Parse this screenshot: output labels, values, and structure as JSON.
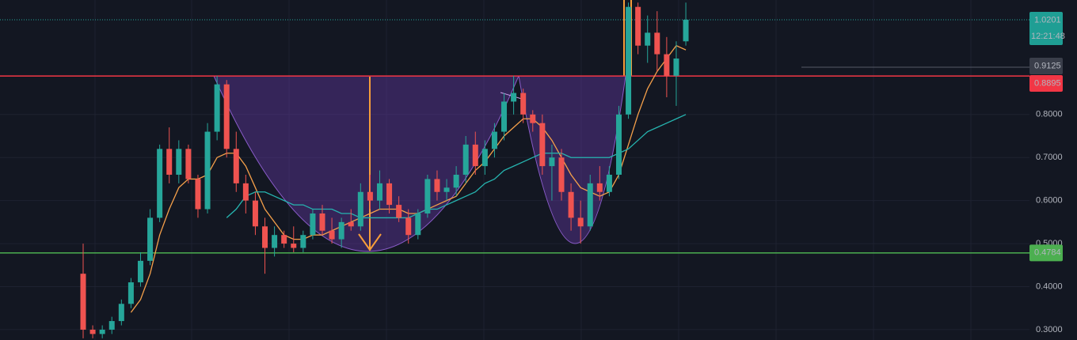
{
  "chart_data": {
    "type": "candlestick",
    "open": [
      0.43,
      0.3,
      0.29,
      0.3,
      0.32,
      0.36,
      0.41,
      0.46,
      0.56,
      0.72,
      0.66,
      0.72,
      0.65,
      0.58,
      0.76,
      0.87,
      0.72,
      0.64,
      0.6,
      0.54,
      0.49,
      0.52,
      0.5,
      0.49,
      0.52,
      0.57,
      0.53,
      0.51,
      0.55,
      0.54,
      0.62,
      0.6,
      0.64,
      0.59,
      0.56,
      0.52,
      0.57,
      0.65,
      0.62,
      0.63,
      0.66,
      0.73,
      0.68,
      0.72,
      0.76,
      0.83,
      0.85,
      0.8,
      0.78,
      0.68,
      0.7,
      0.62,
      0.56,
      0.54,
      0.64,
      0.62,
      0.66,
      0.8,
      1.05,
      0.96,
      0.99,
      0.94,
      0.89,
      0.97
    ],
    "high": [
      0.5,
      0.31,
      0.31,
      0.33,
      0.37,
      0.42,
      0.48,
      0.58,
      0.73,
      0.77,
      0.74,
      0.73,
      0.66,
      0.78,
      0.89,
      0.88,
      0.76,
      0.66,
      0.62,
      0.56,
      0.54,
      0.53,
      0.54,
      0.53,
      0.58,
      0.59,
      0.56,
      0.56,
      0.58,
      0.64,
      0.66,
      0.67,
      0.65,
      0.61,
      0.58,
      0.58,
      0.66,
      0.67,
      0.65,
      0.68,
      0.75,
      0.76,
      0.74,
      0.78,
      0.85,
      0.89,
      0.86,
      0.81,
      0.8,
      0.73,
      0.72,
      0.64,
      0.6,
      0.66,
      0.68,
      0.68,
      0.82,
      1.06,
      1.06,
      1.03,
      1.04,
      0.98,
      0.97,
      1.06
    ],
    "low": [
      0.28,
      0.28,
      0.28,
      0.29,
      0.31,
      0.35,
      0.4,
      0.45,
      0.55,
      0.64,
      0.64,
      0.64,
      0.56,
      0.57,
      0.74,
      0.7,
      0.62,
      0.57,
      0.52,
      0.43,
      0.47,
      0.49,
      0.48,
      0.48,
      0.51,
      0.52,
      0.5,
      0.49,
      0.53,
      0.53,
      0.58,
      0.58,
      0.57,
      0.55,
      0.5,
      0.51,
      0.56,
      0.6,
      0.6,
      0.61,
      0.64,
      0.66,
      0.66,
      0.7,
      0.74,
      0.8,
      0.78,
      0.76,
      0.66,
      0.6,
      0.6,
      0.53,
      0.5,
      0.53,
      0.6,
      0.61,
      0.65,
      0.79,
      0.94,
      0.92,
      0.9,
      0.84,
      0.82,
      0.96
    ],
    "close": [
      0.3,
      0.29,
      0.3,
      0.32,
      0.36,
      0.41,
      0.46,
      0.56,
      0.72,
      0.66,
      0.72,
      0.65,
      0.58,
      0.76,
      0.87,
      0.72,
      0.64,
      0.6,
      0.54,
      0.49,
      0.52,
      0.5,
      0.49,
      0.52,
      0.57,
      0.53,
      0.51,
      0.55,
      0.54,
      0.62,
      0.6,
      0.64,
      0.59,
      0.56,
      0.52,
      0.57,
      0.65,
      0.62,
      0.63,
      0.66,
      0.73,
      0.68,
      0.72,
      0.76,
      0.83,
      0.85,
      0.8,
      0.78,
      0.68,
      0.7,
      0.62,
      0.56,
      0.54,
      0.64,
      0.62,
      0.66,
      0.8,
      1.05,
      0.96,
      0.99,
      0.94,
      0.89,
      0.93,
      1.0201
    ],
    "up_color": "#26a69a",
    "down_color": "#ef5350",
    "overlays": [
      {
        "color": "#f5a04a",
        "values": [
          null,
          null,
          null,
          null,
          null,
          0.34,
          0.37,
          0.43,
          0.52,
          0.58,
          0.63,
          0.65,
          0.65,
          0.66,
          0.7,
          0.71,
          0.71,
          0.68,
          0.63,
          0.58,
          0.55,
          0.52,
          0.51,
          0.51,
          0.52,
          0.52,
          0.53,
          0.54,
          0.55,
          0.56,
          0.57,
          0.58,
          0.58,
          0.58,
          0.57,
          0.57,
          0.58,
          0.59,
          0.6,
          0.61,
          0.64,
          0.67,
          0.69,
          0.72,
          0.75,
          0.77,
          0.79,
          0.79,
          0.77,
          0.74,
          0.7,
          0.66,
          0.63,
          0.62,
          0.61,
          0.62,
          0.66,
          0.73,
          0.8,
          0.86,
          0.9,
          0.93,
          0.96,
          0.95
        ]
      },
      {
        "color": "#26b5b0",
        "values": [
          null,
          null,
          null,
          null,
          null,
          null,
          null,
          null,
          null,
          null,
          null,
          null,
          null,
          null,
          null,
          0.56,
          0.58,
          0.61,
          0.62,
          0.62,
          0.61,
          0.6,
          0.59,
          0.59,
          0.58,
          0.58,
          0.58,
          0.57,
          0.57,
          0.56,
          0.56,
          0.56,
          0.56,
          0.56,
          0.56,
          0.57,
          0.58,
          0.58,
          0.59,
          0.6,
          0.61,
          0.62,
          0.64,
          0.65,
          0.67,
          0.68,
          0.69,
          0.7,
          0.71,
          0.71,
          0.71,
          0.7,
          0.7,
          0.7,
          0.7,
          0.7,
          0.71,
          0.72,
          0.74,
          0.76,
          0.77,
          0.78,
          0.79,
          0.8
        ]
      }
    ],
    "ylim": [
      0.276,
      1.066
    ],
    "yticks": [
      {
        "value": 0.3,
        "label": "0.3000"
      },
      {
        "value": 0.4,
        "label": "0.4000"
      },
      {
        "value": 0.5,
        "label": "0.5000"
      },
      {
        "value": 0.6,
        "label": "0.6000"
      },
      {
        "value": 0.7,
        "label": "0.7000"
      },
      {
        "value": 0.8,
        "label": "0.8000"
      }
    ],
    "hlines": [
      {
        "value": 0.8895,
        "color": "#f23645"
      },
      {
        "value": 0.4784,
        "color": "#4caf50"
      }
    ],
    "price_labels": [
      {
        "value": 1.0201,
        "label": "1.0201",
        "sub": "12:21:48",
        "color": "#1f9e94"
      },
      {
        "value": 0.9125,
        "label": "0.9125",
        "color": "#3a3e4a"
      },
      {
        "value": 0.8895,
        "label": "0.8895",
        "color": "#f23645"
      },
      {
        "value": 0.4784,
        "label": "0.4784",
        "color": "#4caf50"
      }
    ]
  }
}
